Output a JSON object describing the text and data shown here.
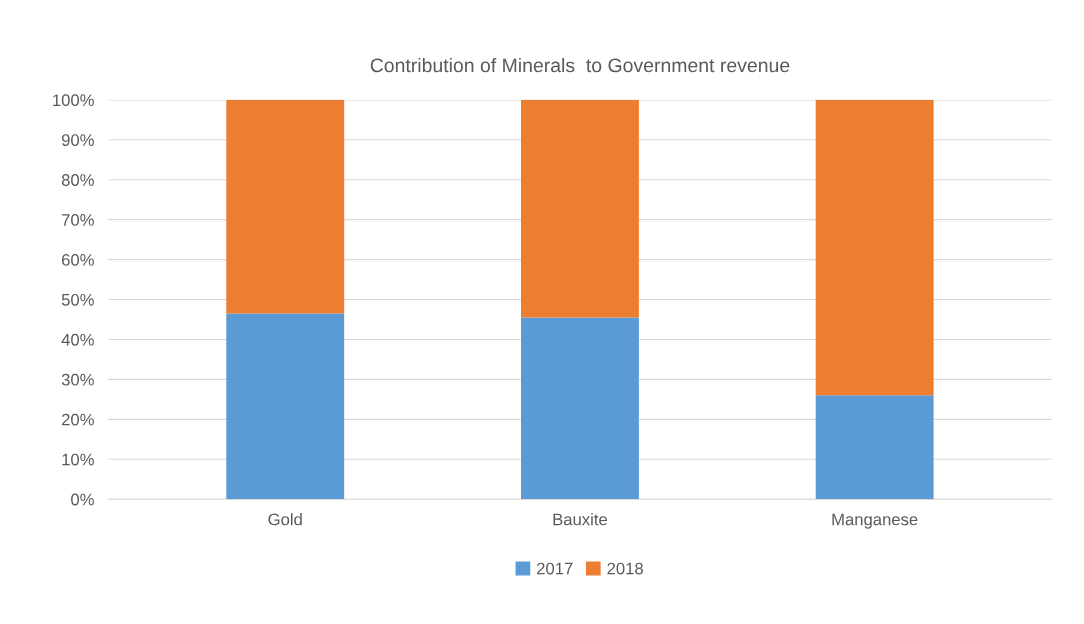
{
  "chart_data": {
    "type": "bar",
    "title": "Contribution of Minerals  to Government revenue",
    "categories": [
      "Gold",
      "Bauxite",
      "Manganese"
    ],
    "stacked": true,
    "series": [
      {
        "name": "2017",
        "color": "#5b9bd5",
        "values": [
          46.5,
          45.5,
          26
        ]
      },
      {
        "name": "2018",
        "color": "#ed7d31",
        "values": [
          53.5,
          54.5,
          74
        ]
      }
    ],
    "ylim": [
      0,
      100
    ],
    "yticks": [
      {
        "value": 0,
        "label": "0%"
      },
      {
        "value": 10,
        "label": "10%"
      },
      {
        "value": 20,
        "label": "20%"
      },
      {
        "value": 30,
        "label": "30%"
      },
      {
        "value": 40,
        "label": "40%"
      },
      {
        "value": 50,
        "label": "50%"
      },
      {
        "value": 60,
        "label": "60%"
      },
      {
        "value": 70,
        "label": "70%"
      },
      {
        "value": 80,
        "label": "80%"
      },
      {
        "value": 90,
        "label": "90%"
      },
      {
        "value": 100,
        "label": "100%"
      }
    ],
    "grid": "y",
    "legend": "bottom"
  }
}
